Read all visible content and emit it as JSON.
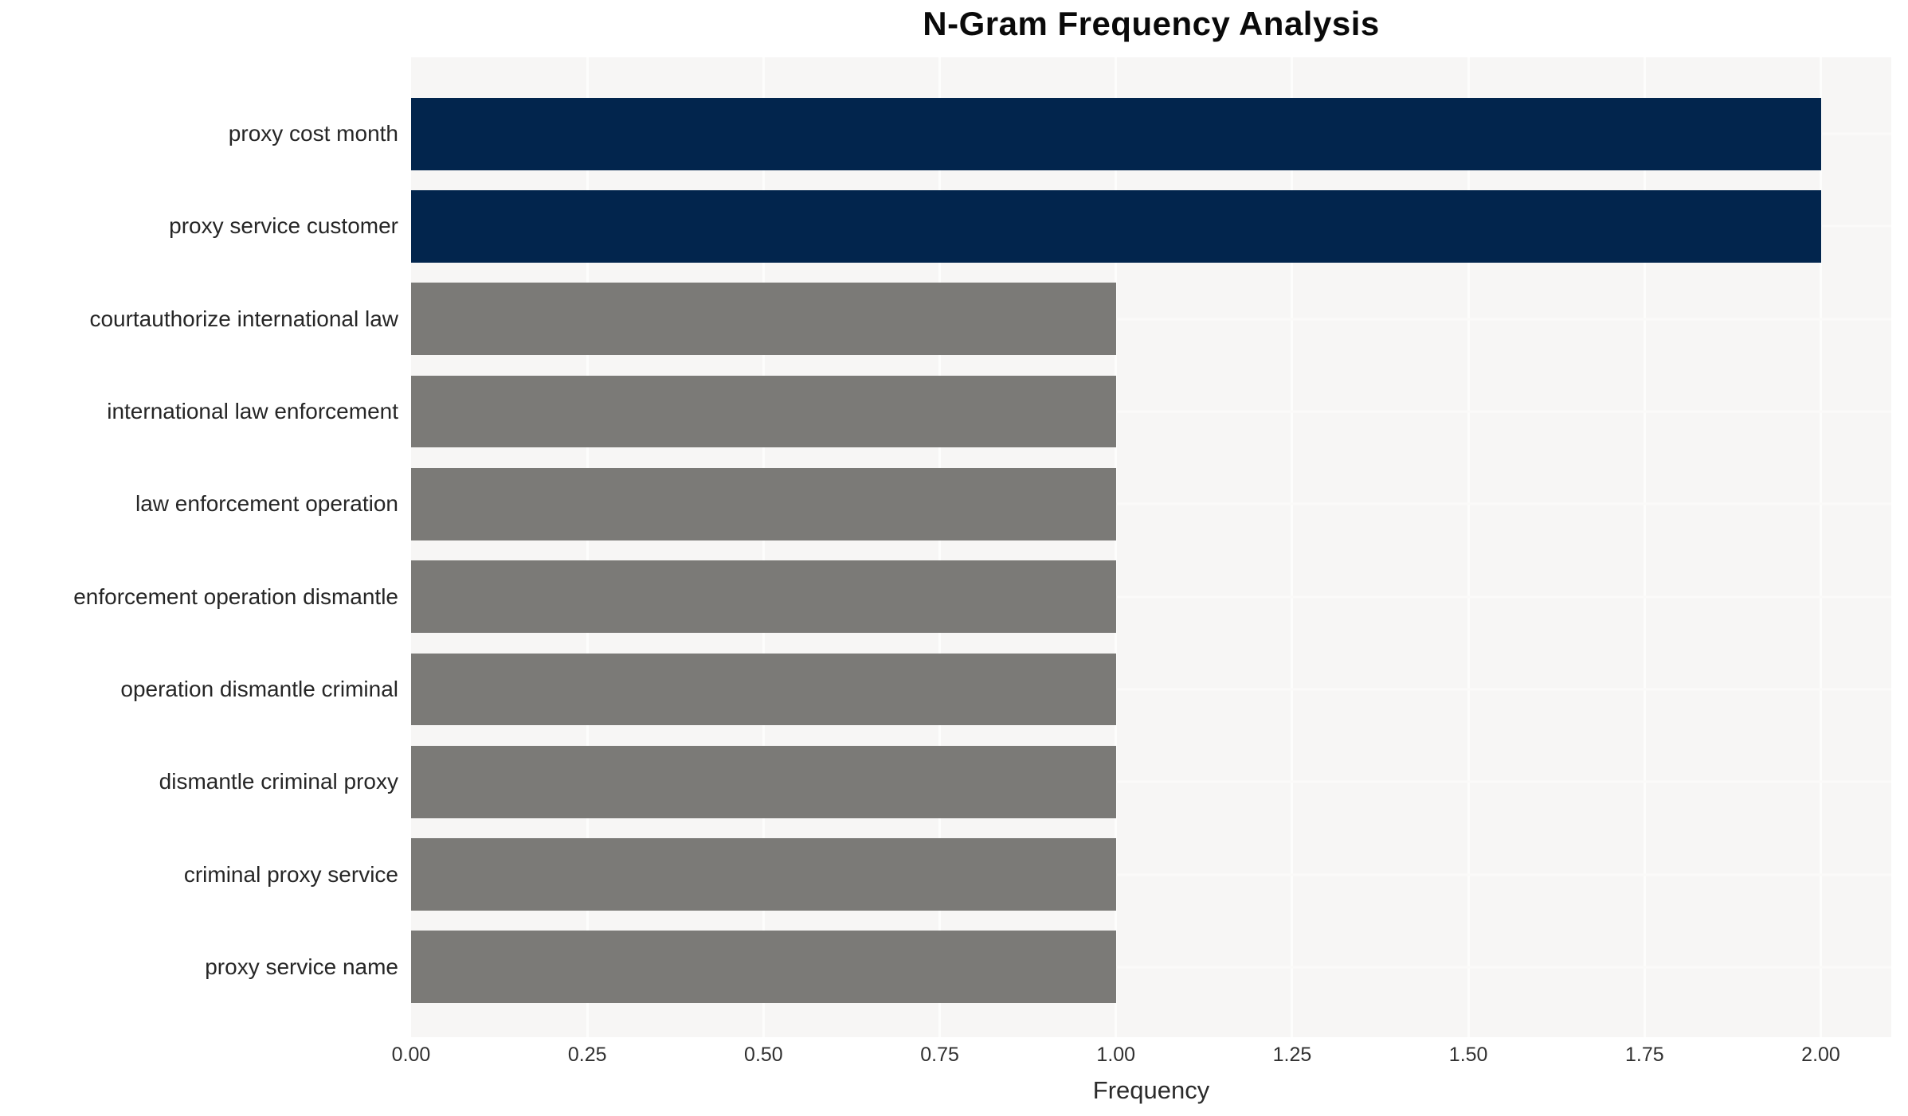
{
  "chart_data": {
    "type": "bar",
    "orientation": "horizontal",
    "title": "N-Gram Frequency Analysis",
    "xlabel": "Frequency",
    "ylabel": "",
    "categories": [
      "proxy cost month",
      "proxy service customer",
      "courtauthorize international law",
      "international law enforcement",
      "law enforcement operation",
      "enforcement operation dismantle",
      "operation dismantle criminal",
      "dismantle criminal proxy",
      "criminal proxy service",
      "proxy service name"
    ],
    "values": [
      2,
      2,
      1,
      1,
      1,
      1,
      1,
      1,
      1,
      1
    ],
    "bar_colors": [
      "#02254d",
      "#02254d",
      "#7b7a77",
      "#7b7a77",
      "#7b7a77",
      "#7b7a77",
      "#7b7a77",
      "#7b7a77",
      "#7b7a77",
      "#7b7a77"
    ],
    "xlim": [
      0,
      2.1
    ],
    "xticks": [
      0,
      0.25,
      0.5,
      0.75,
      1.0,
      1.25,
      1.5,
      1.75,
      2.0
    ],
    "xtick_labels": [
      "0.00",
      "0.25",
      "0.50",
      "0.75",
      "1.00",
      "1.25",
      "1.50",
      "1.75",
      "2.00"
    ],
    "grid": true,
    "legend_position": "none",
    "colors": {
      "highlight": "#02254d",
      "default": "#7b7a77",
      "plot_background": "#f7f6f5",
      "grid_line": "#fdfdfc",
      "label_text": "#262626",
      "title_text": "#0a0a0a"
    }
  }
}
